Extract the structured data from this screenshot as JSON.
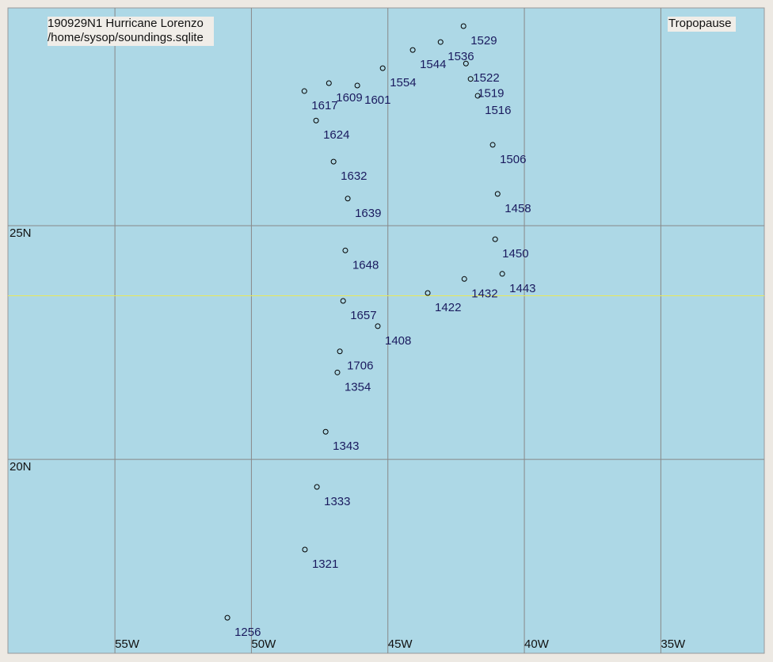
{
  "chart_data": {
    "type": "scatter",
    "title": "190929N1 Hurricane Lorenzo",
    "subtitle": "/home/sysop/soundings.sqlite",
    "annotation": "Tropopause",
    "labels": [
      "1529",
      "1536",
      "1544",
      "1554",
      "1601",
      "1609",
      "1617",
      "1624",
      "1632",
      "1639",
      "1648",
      "1657",
      "1706",
      "1522",
      "1519",
      "1516",
      "1506",
      "1458",
      "1450",
      "1443",
      "1432",
      "1422",
      "1408",
      "1354",
      "1343",
      "1333",
      "1321",
      "1256"
    ],
    "x": [
      -42.23,
      -43.07,
      -44.09,
      -45.19,
      -46.12,
      -47.16,
      -48.06,
      -47.63,
      -46.99,
      -46.47,
      -46.56,
      -46.64,
      -46.76,
      -42.14,
      -41.97,
      -41.71,
      -41.16,
      -40.98,
      -41.07,
      -40.81,
      -42.2,
      -43.54,
      -45.37,
      -46.85,
      -47.28,
      -47.6,
      -48.04,
      -50.88
    ],
    "y": [
      29.27,
      28.93,
      28.76,
      28.37,
      28.0,
      28.05,
      27.88,
      27.25,
      26.37,
      25.58,
      24.47,
      23.39,
      22.31,
      28.47,
      28.14,
      27.78,
      26.73,
      25.68,
      24.71,
      23.97,
      23.86,
      23.56,
      22.85,
      21.86,
      20.59,
      19.41,
      18.07,
      16.61
    ],
    "xlim": [
      -58.92,
      -31.21
    ],
    "ylim": [
      15.85,
      29.66
    ],
    "xticks": [
      {
        "value": -55,
        "label": "55W"
      },
      {
        "value": -50,
        "label": "50W"
      },
      {
        "value": -45,
        "label": "45W"
      },
      {
        "value": -40,
        "label": "40W"
      },
      {
        "value": -35,
        "label": "35W"
      }
    ],
    "yticks": [
      {
        "value": 25,
        "label": "25N"
      },
      {
        "value": 20,
        "label": "20N"
      }
    ],
    "reference_lat": 23.5,
    "grid": true,
    "color": "#000000",
    "label_color": "#1a1a5e",
    "reference_color": "#e8e85a",
    "background": "#add8e6"
  }
}
